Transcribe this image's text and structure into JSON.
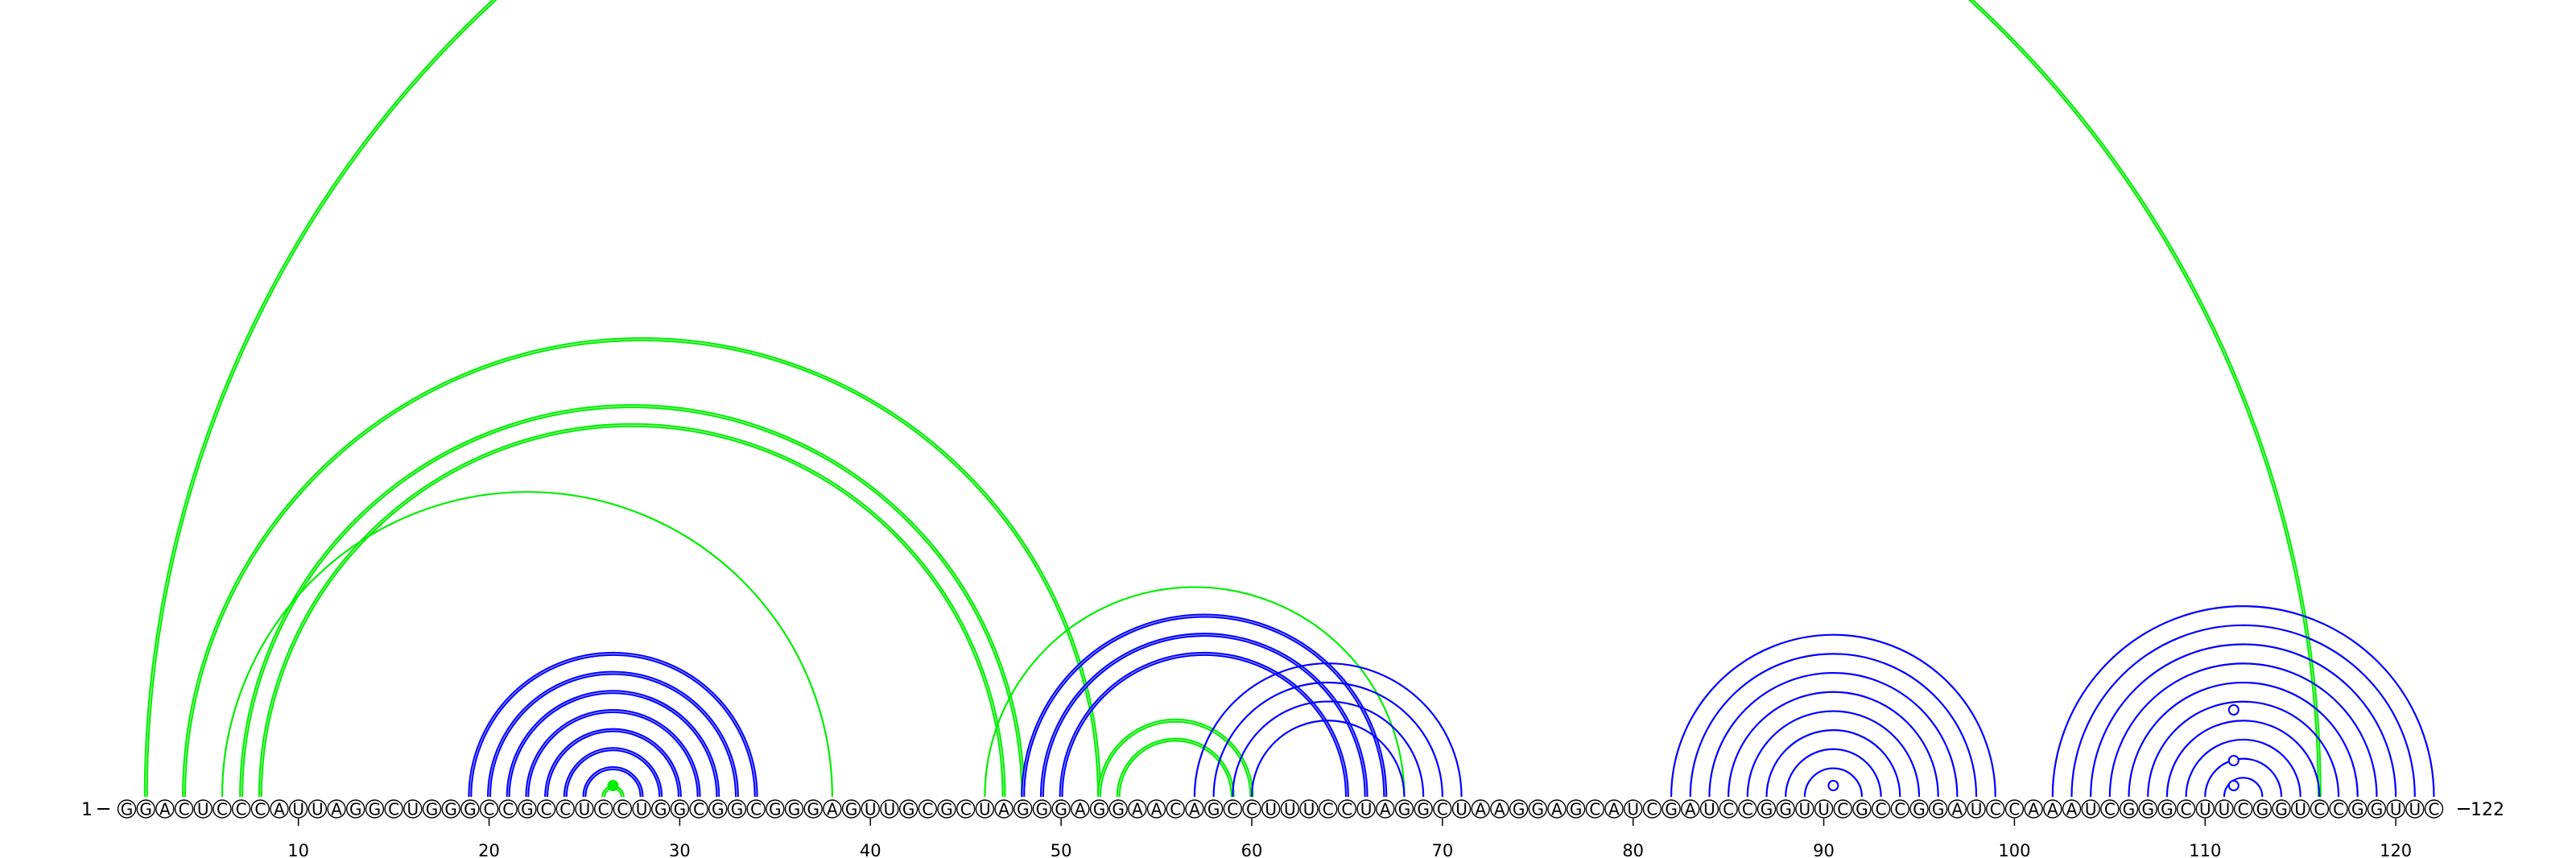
{
  "sequence": {
    "start_label": "1",
    "end_label": "122",
    "bases": "GGACUCCCAUUAGGCUGGGCCGCCUCCUGGCGGCGGGAGUUGCGCUAGGGAGGAACAGCCUUUCCUAGGCUAAGGAGCAUCGAUCCGGUUCGCCGGAUCCAAAUCGGGCUUCGGUCCGGUUC",
    "tick_labels": [
      "10",
      "20",
      "30",
      "40",
      "50",
      "60",
      "70",
      "80",
      "90",
      "100",
      "110",
      "120"
    ],
    "tick_positions": [
      10,
      20,
      30,
      40,
      50,
      60,
      70,
      80,
      90,
      100,
      110,
      120
    ]
  },
  "colors": {
    "blue": "#0000ff",
    "green": "#00ee00",
    "text": "#000000"
  },
  "arc_groups": [
    {
      "color": "blue",
      "double": true,
      "pairs": [
        [
          19,
          34
        ],
        [
          20,
          33
        ],
        [
          21,
          32
        ],
        [
          22,
          31
        ],
        [
          23,
          30
        ],
        [
          24,
          29
        ],
        [
          25,
          28
        ]
      ]
    },
    {
      "color": "green",
      "double": true,
      "pairs": [
        [
          26,
          27
        ]
      ]
    },
    {
      "color": "green",
      "double": true,
      "pairs": [
        [
          2,
          116
        ],
        [
          4,
          52
        ],
        [
          7,
          48
        ],
        [
          8,
          47
        ]
      ]
    },
    {
      "color": "green",
      "double": false,
      "pairs": [
        [
          6,
          38
        ]
      ]
    },
    {
      "color": "green",
      "double": false,
      "pairs": [
        [
          46,
          68
        ]
      ]
    },
    {
      "color": "blue",
      "double": true,
      "pairs": [
        [
          48,
          67
        ],
        [
          49,
          66
        ],
        [
          50,
          65
        ]
      ]
    },
    {
      "color": "green",
      "double": true,
      "pairs": [
        [
          52,
          60
        ],
        [
          53,
          59
        ]
      ]
    },
    {
      "color": "blue",
      "double": false,
      "pairs": [
        [
          57,
          71
        ],
        [
          58,
          70
        ],
        [
          59,
          69
        ],
        [
          60,
          68
        ]
      ]
    },
    {
      "color": "blue",
      "double": false,
      "pairs": [
        [
          82,
          99
        ],
        [
          83,
          98
        ],
        [
          84,
          97
        ],
        [
          85,
          96
        ],
        [
          86,
          95
        ],
        [
          87,
          94
        ],
        [
          88,
          93
        ],
        [
          89,
          92
        ]
      ]
    },
    {
      "color": "blue",
      "double": false,
      "pairs": [
        [
          102,
          122
        ],
        [
          103,
          121
        ],
        [
          104,
          120
        ],
        [
          105,
          119
        ],
        [
          106,
          118
        ],
        [
          107,
          117
        ],
        [
          108,
          116
        ],
        [
          109,
          115
        ],
        [
          110,
          114
        ],
        [
          111,
          113
        ]
      ]
    }
  ],
  "markers": [
    {
      "pos": 26.5,
      "arc_height": 0.02,
      "fill": "green"
    },
    {
      "pos": 90.5,
      "arc_height": 0.02,
      "fill": "white"
    },
    {
      "pos": 111.5,
      "arc_height": 0.02,
      "fill": "white"
    },
    {
      "pos": 111.5,
      "arc_height": 0.05,
      "fill": "white"
    },
    {
      "pos": 111.5,
      "arc_height": 0.09,
      "fill": "white"
    }
  ]
}
